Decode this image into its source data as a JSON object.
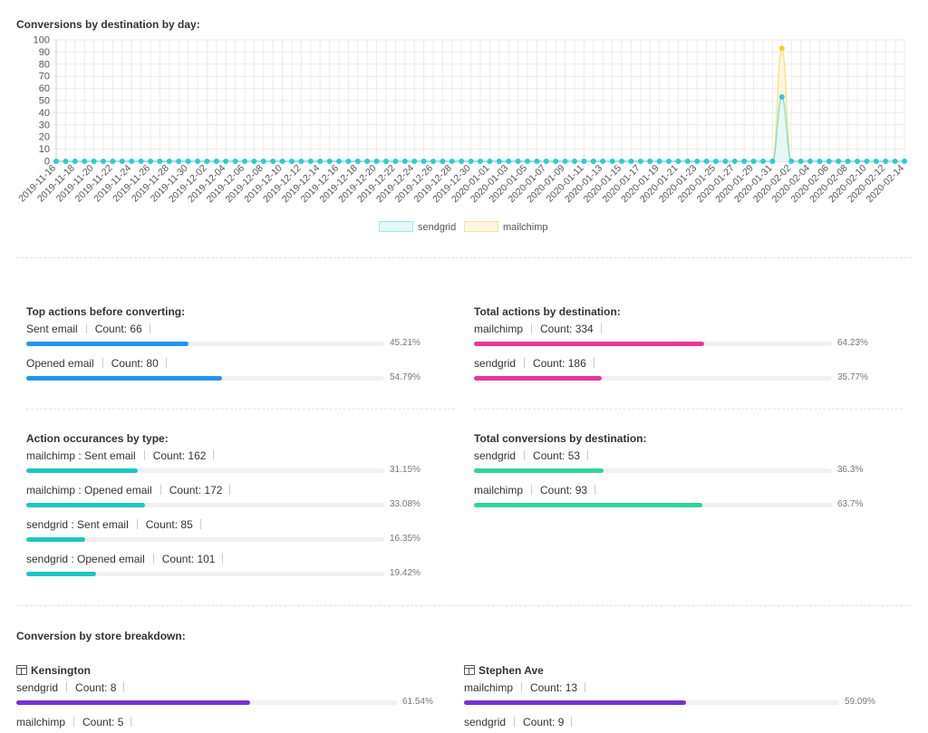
{
  "chart_data": {
    "type": "line",
    "title": "Conversions by destination by day:",
    "ylim": [
      0,
      100
    ],
    "yticks": [
      0,
      10,
      20,
      30,
      40,
      50,
      60,
      70,
      80,
      90,
      100
    ],
    "x": [
      "2019-11-16",
      "2019-11-17",
      "2019-11-18",
      "2019-11-19",
      "2019-11-20",
      "2019-11-21",
      "2019-11-22",
      "2019-11-23",
      "2019-11-24",
      "2019-11-25",
      "2019-11-26",
      "2019-11-27",
      "2019-11-28",
      "2019-11-29",
      "2019-11-30",
      "2019-12-01",
      "2019-12-02",
      "2019-12-03",
      "2019-12-04",
      "2019-12-05",
      "2019-12-06",
      "2019-12-07",
      "2019-12-08",
      "2019-12-09",
      "2019-12-10",
      "2019-12-11",
      "2019-12-12",
      "2019-12-13",
      "2019-12-14",
      "2019-12-15",
      "2019-12-16",
      "2019-12-17",
      "2019-12-18",
      "2019-12-19",
      "2019-12-20",
      "2019-12-21",
      "2019-12-22",
      "2019-12-23",
      "2019-12-24",
      "2019-12-25",
      "2019-12-26",
      "2019-12-27",
      "2019-12-28",
      "2019-12-29",
      "2019-12-30",
      "2019-12-31",
      "2020-01-01",
      "2020-01-02",
      "2020-01-03",
      "2020-01-04",
      "2020-01-05",
      "2020-01-06",
      "2020-01-07",
      "2020-01-08",
      "2020-01-09",
      "2020-01-10",
      "2020-01-11",
      "2020-01-12",
      "2020-01-13",
      "2020-01-14",
      "2020-01-15",
      "2020-01-16",
      "2020-01-17",
      "2020-01-18",
      "2020-01-19",
      "2020-01-20",
      "2020-01-21",
      "2020-01-22",
      "2020-01-23",
      "2020-01-24",
      "2020-01-25",
      "2020-01-26",
      "2020-01-27",
      "2020-01-28",
      "2020-01-29",
      "2020-01-30",
      "2020-01-31",
      "2020-02-01",
      "2020-02-02",
      "2020-02-03",
      "2020-02-04",
      "2020-02-05",
      "2020-02-06",
      "2020-02-07",
      "2020-02-08",
      "2020-02-09",
      "2020-02-10",
      "2020-02-11",
      "2020-02-12",
      "2020-02-13",
      "2020-02-14"
    ],
    "xtick_labels": [
      "2019-11-16",
      "2019-11-18",
      "2019-11-20",
      "2019-11-22",
      "2019-11-24",
      "2019-11-26",
      "2019-11-28",
      "2019-11-30",
      "2019-12-02",
      "2019-12-04",
      "2019-12-06",
      "2019-12-08",
      "2019-12-10",
      "2019-12-12",
      "2019-12-14",
      "2019-12-16",
      "2019-12-18",
      "2019-12-20",
      "2019-12-22",
      "2019-12-24",
      "2019-12-26",
      "2019-12-28",
      "2019-12-30",
      "2020-01-01",
      "2020-01-03",
      "2020-01-05",
      "2020-01-07",
      "2020-01-09",
      "2020-01-11",
      "2020-01-13",
      "2020-01-15",
      "2020-01-17",
      "2020-01-19",
      "2020-01-21",
      "2020-01-23",
      "2020-01-25",
      "2020-01-27",
      "2020-01-29",
      "2020-01-31",
      "2020-02-02",
      "2020-02-04",
      "2020-02-06",
      "2020-02-08",
      "2020-02-10",
      "2020-02-12",
      "2020-02-14"
    ],
    "series": [
      {
        "name": "sendgrid",
        "color": "#2ecbd4",
        "fill": "#e3f7f9",
        "peak_date": "2020-02-01",
        "peak_value": 53
      },
      {
        "name": "mailchimp",
        "color": "#f2d21a",
        "fill": "#fdf5de",
        "peak_date": "2020-02-01",
        "peak_value": 93
      }
    ],
    "grid": true,
    "legend_position": "bottom"
  },
  "panels": {
    "top_actions": {
      "title": "Top actions before converting:",
      "color": "#2196f3",
      "rows": [
        {
          "label": "Sent email",
          "count": "Count: 66",
          "pct_value": 45.21,
          "pct": "45.21%"
        },
        {
          "label": "Opened email",
          "count": "Count: 80",
          "pct_value": 54.79,
          "pct": "54.79%"
        }
      ]
    },
    "total_actions": {
      "title": "Total actions by destination:",
      "color": "#e8379b",
      "rows": [
        {
          "label": "mailchimp",
          "count": "Count: 334",
          "pct_value": 64.23,
          "pct": "64.23%"
        },
        {
          "label": "sendgrid",
          "count": "Count: 186",
          "pct_value": 35.77,
          "pct": "35.77%"
        }
      ]
    },
    "occurances": {
      "title": "Action occurances by type:",
      "color": "#20c4c4",
      "rows": [
        {
          "label": "mailchimp : Sent email",
          "count": "Count: 162",
          "pct_value": 31.15,
          "pct": "31.15%"
        },
        {
          "label": "mailchimp : Opened email",
          "count": "Count: 172",
          "pct_value": 33.08,
          "pct": "33.08%"
        },
        {
          "label": "sendgrid : Sent email",
          "count": "Count: 85",
          "pct_value": 16.35,
          "pct": "16.35%"
        },
        {
          "label": "sendgrid : Opened email",
          "count": "Count: 101",
          "pct_value": 19.42,
          "pct": "19.42%"
        }
      ]
    },
    "total_conversions": {
      "title": "Total conversions by destination:",
      "color": "#30d49a",
      "rows": [
        {
          "label": "sendgrid",
          "count": "Count: 53",
          "pct_value": 36.3,
          "pct": "36.3%"
        },
        {
          "label": "mailchimp",
          "count": "Count: 93",
          "pct_value": 63.7,
          "pct": "63.7%"
        }
      ]
    }
  },
  "store_breakdown": {
    "title": "Conversion by store breakdown:",
    "color": "#7435d4",
    "stores": [
      {
        "name": "Kensington",
        "rows": [
          {
            "label": "sendgrid",
            "count": "Count: 8",
            "pct_value": 61.54,
            "pct": "61.54%"
          },
          {
            "label": "mailchimp",
            "count": "Count: 5"
          }
        ]
      },
      {
        "name": "Stephen Ave",
        "rows": [
          {
            "label": "mailchimp",
            "count": "Count: 13",
            "pct_value": 59.09,
            "pct": "59.09%"
          },
          {
            "label": "sendgrid",
            "count": "Count: 9"
          }
        ]
      }
    ]
  }
}
